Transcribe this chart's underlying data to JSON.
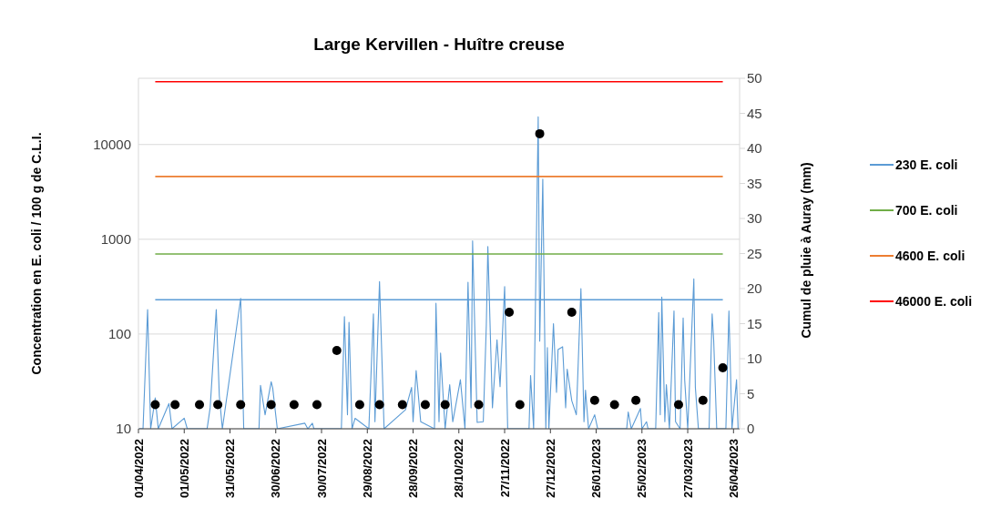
{
  "chart_data": {
    "type": "line",
    "title": "Large Kervillen - Huître creuse",
    "ylabel": "Concentration en E. coli / 100 g de C.L.I.",
    "y2label": "Cumul de pluie à Auray (mm)",
    "log": "y",
    "grid": "y",
    "legend": "right",
    "marker": "none",
    "xlim": [
      "2022-04-01",
      "2023-04-30"
    ],
    "xticks": [
      {
        "value": "2022-04-01",
        "label": "01/04/2022"
      },
      {
        "value": "2022-05-01",
        "label": "01/05/2022"
      },
      {
        "value": "2022-05-31",
        "label": "31/05/2022"
      },
      {
        "value": "2022-06-30",
        "label": "30/06/2022"
      },
      {
        "value": "2022-07-30",
        "label": "30/07/2022"
      },
      {
        "value": "2022-08-29",
        "label": "29/08/2022"
      },
      {
        "value": "2022-09-28",
        "label": "28/09/2022"
      },
      {
        "value": "2022-10-28",
        "label": "28/10/2022"
      },
      {
        "value": "2022-11-27",
        "label": "27/11/2022"
      },
      {
        "value": "2022-12-27",
        "label": "27/12/2022"
      },
      {
        "value": "2023-01-26",
        "label": "26/01/2023"
      },
      {
        "value": "2023-02-25",
        "label": "25/02/2023"
      },
      {
        "value": "2023-03-27",
        "label": "27/03/2023"
      },
      {
        "value": "2023-04-26",
        "label": "26/04/2023"
      }
    ],
    "ylim": [
      10,
      50000
    ],
    "yticks": [
      10,
      100,
      1000,
      10000
    ],
    "y2lim": [
      0,
      50
    ],
    "y2ticks": [
      0,
      5,
      10,
      15,
      20,
      25,
      30,
      35,
      40,
      45,
      50
    ],
    "series": [
      {
        "type": "line",
        "axis": "y2",
        "color": "#5b9bd5",
        "x": [
          "2022-04-01",
          "2022-04-04",
          "2022-04-07",
          "2022-04-09",
          "2022-04-12",
          "2022-04-14",
          "2022-04-21",
          "2022-04-23",
          "2022-05-01",
          "2022-05-03",
          "2022-05-16",
          "2022-05-18",
          "2022-05-22",
          "2022-05-24",
          "2022-05-26",
          "2022-06-07",
          "2022-06-09",
          "2022-06-19",
          "2022-06-20",
          "2022-06-23",
          "2022-06-27",
          "2022-06-28",
          "2022-07-01",
          "2022-07-19",
          "2022-07-21",
          "2022-07-24",
          "2022-07-25",
          "2022-08-12",
          "2022-08-14",
          "2022-08-16",
          "2022-08-17",
          "2022-08-19",
          "2022-08-21",
          "2022-08-30",
          "2022-09-02",
          "2022-09-03",
          "2022-09-06",
          "2022-09-09",
          "2022-09-23",
          "2022-09-27",
          "2022-09-28",
          "2022-09-30",
          "2022-10-03",
          "2022-10-12",
          "2022-10-13",
          "2022-10-15",
          "2022-10-16",
          "2022-10-19",
          "2022-10-22",
          "2022-10-24",
          "2022-10-29",
          "2022-11-01",
          "2022-11-03",
          "2022-11-05",
          "2022-11-06",
          "2022-11-09",
          "2022-11-13",
          "2022-11-15",
          "2022-11-16",
          "2022-11-19",
          "2022-11-22",
          "2022-11-24",
          "2022-11-27",
          "2022-11-29",
          "2022-12-13",
          "2022-12-14",
          "2022-12-16",
          "2022-12-19",
          "2022-12-20",
          "2022-12-22",
          "2022-12-24",
          "2022-12-25",
          "2022-12-26",
          "2022-12-29",
          "2022-12-31",
          "2023-01-01",
          "2023-01-04",
          "2023-01-06",
          "2023-01-07",
          "2023-01-10",
          "2023-01-13",
          "2023-01-16",
          "2023-01-18",
          "2023-01-19",
          "2023-01-21",
          "2023-01-25",
          "2023-01-27",
          "2023-02-15",
          "2023-02-16",
          "2023-02-18",
          "2023-02-24",
          "2023-02-25",
          "2023-02-28",
          "2023-03-01",
          "2023-03-06",
          "2023-03-08",
          "2023-03-09",
          "2023-03-10",
          "2023-03-12",
          "2023-03-13",
          "2023-03-15",
          "2023-03-18",
          "2023-03-19",
          "2023-03-22",
          "2023-03-24",
          "2023-03-25",
          "2023-03-27",
          "2023-03-31",
          "2023-04-01",
          "2023-04-03",
          "2023-04-10",
          "2023-04-12",
          "2023-04-13",
          "2023-04-15",
          "2023-04-21",
          "2023-04-23",
          "2023-04-25",
          "2023-04-28",
          "2023-04-29"
        ],
        "values": [
          0,
          0,
          17,
          0,
          4.4,
          0,
          3.6,
          0,
          1.5,
          0,
          0,
          3,
          17,
          4.7,
          0,
          18.6,
          0,
          0,
          6.2,
          2,
          6.7,
          5.8,
          0,
          0.8,
          0,
          0.8,
          0,
          0,
          16,
          2,
          15.2,
          0,
          1.5,
          0,
          16.4,
          1,
          21,
          0,
          2.7,
          5.9,
          1,
          8.3,
          1,
          0,
          17.9,
          1,
          10.8,
          0,
          6.3,
          1,
          7,
          0,
          20.9,
          3,
          26.8,
          0.9,
          1,
          14.8,
          26,
          3,
          12.7,
          6,
          20.3,
          0,
          0,
          7.6,
          0,
          44.5,
          12.5,
          35.6,
          0,
          11.6,
          0,
          15,
          5.2,
          11.3,
          11.7,
          3,
          8.5,
          4,
          2,
          20,
          1,
          5.5,
          0,
          2,
          0,
          0,
          2.4,
          0,
          2.9,
          0,
          1,
          0,
          0,
          16.6,
          2,
          18.8,
          1,
          6.3,
          0,
          16.8,
          1,
          0,
          15.8,
          7,
          0,
          21.4,
          5.9,
          0,
          0,
          16.4,
          12.7,
          0,
          0,
          16.8,
          0,
          7,
          0
        ]
      },
      {
        "type": "scatter",
        "marker": "circle",
        "color": "#000000",
        "x": [
          "2022-04-12",
          "2022-04-25",
          "2022-05-11",
          "2022-05-23",
          "2022-06-07",
          "2022-06-27",
          "2022-07-12",
          "2022-07-27",
          "2022-08-09",
          "2022-08-24",
          "2022-09-06",
          "2022-09-21",
          "2022-10-06",
          "2022-10-19",
          "2022-11-10",
          "2022-11-30",
          "2022-12-07",
          "2022-12-20",
          "2023-01-10",
          "2023-01-25",
          "2023-02-07",
          "2023-02-21",
          "2023-03-21",
          "2023-04-06",
          "2023-04-19"
        ],
        "values": [
          18,
          18,
          18,
          18,
          18,
          18,
          18,
          18,
          67,
          18,
          18,
          18,
          18,
          18,
          18,
          170,
          18,
          13000,
          170,
          20,
          18,
          20,
          18,
          20,
          44
        ]
      },
      {
        "name": "230 E. coli",
        "color": "#5b9bd5",
        "x": [
          "2022-04-12",
          "2023-04-19"
        ],
        "values": [
          230,
          230
        ]
      },
      {
        "name": "700 E. coli",
        "color": "#70ad47",
        "x": [
          "2022-04-12",
          "2023-04-19"
        ],
        "values": [
          700,
          700
        ]
      },
      {
        "name": "4600 E. coli",
        "color": "#ed7d31",
        "x": [
          "2022-04-12",
          "2023-04-19"
        ],
        "values": [
          4600,
          4600
        ]
      },
      {
        "name": "46000 E. coli",
        "color": "#ff0000",
        "x": [
          "2022-04-12",
          "2023-04-19"
        ],
        "values": [
          46000,
          46000
        ]
      }
    ]
  }
}
